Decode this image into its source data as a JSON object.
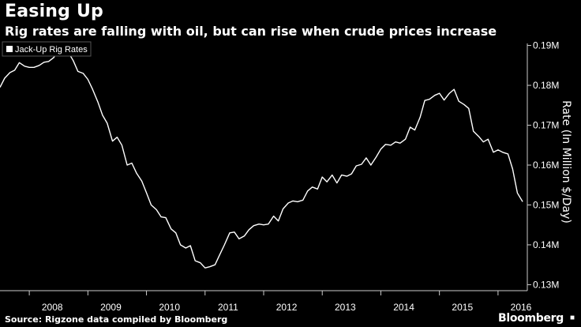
{
  "header": {
    "title": "Easing Up",
    "subtitle": "Rig rates are falling with oil, but can rise when crude prices increase"
  },
  "footer": {
    "source": "Source: Rigzone data compiled by Bloomberg",
    "brand": "Bloomberg",
    "brand_icon": "bloomberg-logo-icon"
  },
  "colors": {
    "background": "#000000",
    "line": "#ffffff",
    "text": "#ffffff",
    "axis": "#cccccc"
  },
  "chart_data": {
    "type": "line",
    "title": "Easing Up",
    "subtitle": "Rig rates are falling with oil, but can rise when crude prices increase",
    "ylabel": "Rate (In Million $/Day)",
    "xlabel": "",
    "ylim": [
      0.1285,
      0.1915
    ],
    "xlim": [
      2007.5,
      2016.5
    ],
    "y_ticks": [
      0.13,
      0.14,
      0.15,
      0.16,
      0.17,
      0.18,
      0.19
    ],
    "y_tick_labels": [
      "0.13M",
      "0.14M",
      "0.15M",
      "0.16M",
      "0.17M",
      "0.18M",
      "0.19M"
    ],
    "x_tick_labels": [
      "2008",
      "2009",
      "2010",
      "2011",
      "2012",
      "2013",
      "2014",
      "2015",
      "2016"
    ],
    "grid": false,
    "legend_position": "top-left",
    "series": [
      {
        "name": "Jack-Up Rig Rates",
        "points": [
          [
            2007.5,
            0.1795
          ],
          [
            2007.58,
            0.1818
          ],
          [
            2007.67,
            0.1832
          ],
          [
            2007.75,
            0.1838
          ],
          [
            2007.83,
            0.1857
          ],
          [
            2007.92,
            0.1848
          ],
          [
            2008.0,
            0.1845
          ],
          [
            2008.08,
            0.1845
          ],
          [
            2008.17,
            0.185
          ],
          [
            2008.25,
            0.1858
          ],
          [
            2008.33,
            0.186
          ],
          [
            2008.42,
            0.187
          ],
          [
            2008.5,
            0.1902
          ],
          [
            2008.58,
            0.1888
          ],
          [
            2008.67,
            0.1882
          ],
          [
            2008.75,
            0.1862
          ],
          [
            2008.83,
            0.1835
          ],
          [
            2008.92,
            0.183
          ],
          [
            2009.0,
            0.1815
          ],
          [
            2009.08,
            0.179
          ],
          [
            2009.17,
            0.1758
          ],
          [
            2009.25,
            0.1725
          ],
          [
            2009.33,
            0.1705
          ],
          [
            2009.42,
            0.166
          ],
          [
            2009.5,
            0.167
          ],
          [
            2009.58,
            0.165
          ],
          [
            2009.67,
            0.16
          ],
          [
            2009.75,
            0.1605
          ],
          [
            2009.83,
            0.158
          ],
          [
            2009.92,
            0.156
          ],
          [
            2010.0,
            0.153
          ],
          [
            2010.08,
            0.15
          ],
          [
            2010.17,
            0.1488
          ],
          [
            2010.25,
            0.147
          ],
          [
            2010.33,
            0.1468
          ],
          [
            2010.42,
            0.144
          ],
          [
            2010.5,
            0.143
          ],
          [
            2010.58,
            0.14
          ],
          [
            2010.67,
            0.1392
          ],
          [
            2010.75,
            0.1398
          ],
          [
            2010.83,
            0.136
          ],
          [
            2010.92,
            0.1355
          ],
          [
            2011.0,
            0.1342
          ],
          [
            2011.08,
            0.1345
          ],
          [
            2011.17,
            0.135
          ],
          [
            2011.25,
            0.1375
          ],
          [
            2011.33,
            0.14
          ],
          [
            2011.42,
            0.143
          ],
          [
            2011.5,
            0.1432
          ],
          [
            2011.58,
            0.1415
          ],
          [
            2011.67,
            0.1422
          ],
          [
            2011.75,
            0.1438
          ],
          [
            2011.83,
            0.1448
          ],
          [
            2011.92,
            0.1452
          ],
          [
            2012.0,
            0.145
          ],
          [
            2012.08,
            0.1452
          ],
          [
            2012.17,
            0.1472
          ],
          [
            2012.25,
            0.146
          ],
          [
            2012.33,
            0.149
          ],
          [
            2012.42,
            0.1505
          ],
          [
            2012.5,
            0.151
          ],
          [
            2012.58,
            0.1508
          ],
          [
            2012.67,
            0.1512
          ],
          [
            2012.75,
            0.1535
          ],
          [
            2012.83,
            0.1545
          ],
          [
            2012.92,
            0.154
          ],
          [
            2013.0,
            0.157
          ],
          [
            2013.08,
            0.1558
          ],
          [
            2013.17,
            0.1575
          ],
          [
            2013.25,
            0.1555
          ],
          [
            2013.33,
            0.1575
          ],
          [
            2013.42,
            0.1572
          ],
          [
            2013.5,
            0.1578
          ],
          [
            2013.58,
            0.1598
          ],
          [
            2013.67,
            0.1602
          ],
          [
            2013.75,
            0.1618
          ],
          [
            2013.83,
            0.16
          ],
          [
            2013.92,
            0.162
          ],
          [
            2014.0,
            0.164
          ],
          [
            2014.08,
            0.1652
          ],
          [
            2014.17,
            0.165
          ],
          [
            2014.25,
            0.1658
          ],
          [
            2014.33,
            0.1655
          ],
          [
            2014.42,
            0.1665
          ],
          [
            2014.5,
            0.1695
          ],
          [
            2014.58,
            0.1688
          ],
          [
            2014.67,
            0.172
          ],
          [
            2014.75,
            0.1762
          ],
          [
            2014.83,
            0.1765
          ],
          [
            2014.92,
            0.1775
          ],
          [
            2015.0,
            0.178
          ],
          [
            2015.08,
            0.1763
          ],
          [
            2015.17,
            0.178
          ],
          [
            2015.25,
            0.179
          ],
          [
            2015.33,
            0.176
          ],
          [
            2015.42,
            0.1752
          ],
          [
            2015.5,
            0.1742
          ],
          [
            2015.58,
            0.1685
          ],
          [
            2015.67,
            0.1672
          ],
          [
            2015.75,
            0.1658
          ],
          [
            2015.83,
            0.1665
          ],
          [
            2015.92,
            0.1632
          ],
          [
            2016.0,
            0.1638
          ],
          [
            2016.08,
            0.1632
          ],
          [
            2016.17,
            0.1628
          ],
          [
            2016.25,
            0.159
          ],
          [
            2016.33,
            0.153
          ],
          [
            2016.42,
            0.1508
          ]
        ]
      }
    ]
  }
}
